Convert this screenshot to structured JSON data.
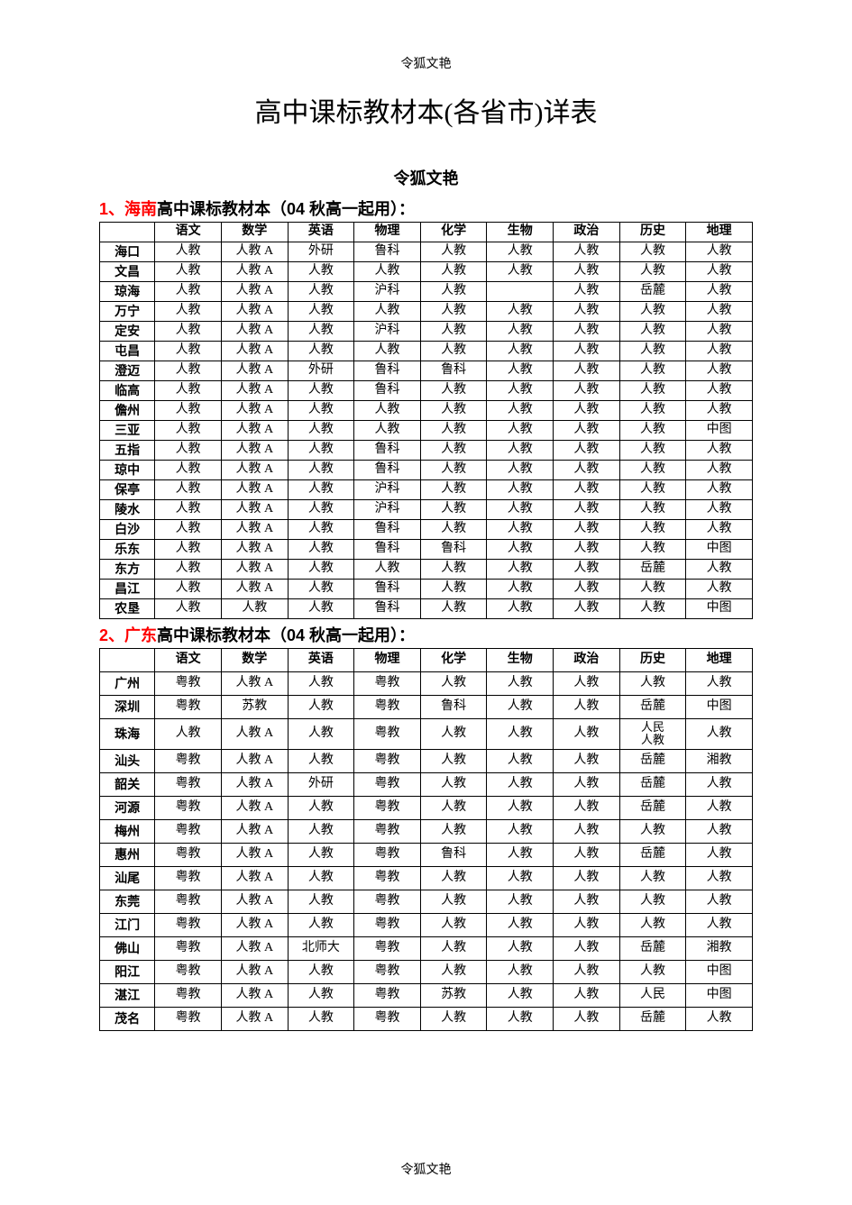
{
  "header": "令狐文艳",
  "main_title": "高中课标教材本(各省市)详表",
  "subtitle": "令狐文艳",
  "footer": "令狐文艳",
  "colors": {
    "text": "#000000",
    "accent": "#ff0000",
    "background": "#ffffff",
    "border": "#000000"
  },
  "section1": {
    "num": "1、",
    "province": "海南",
    "rest": "高中课标教材本（04 秋高一起用）：",
    "columns": [
      "",
      "语文",
      "数学",
      "英语",
      "物理",
      "化学",
      "生物",
      "政治",
      "历史",
      "地理"
    ],
    "rows": [
      [
        "海口",
        "人教",
        "人教 A",
        "外研",
        "鲁科",
        "人教",
        "人教",
        "人教",
        "人教",
        "人教"
      ],
      [
        "文昌",
        "人教",
        "人教 A",
        "人教",
        "人教",
        "人教",
        "人教",
        "人教",
        "人教",
        "人教"
      ],
      [
        "琼海",
        "人教",
        "人教 A",
        "人教",
        "沪科",
        "人教",
        "",
        "人教",
        "岳麓",
        "人教"
      ],
      [
        "万宁",
        "人教",
        "人教 A",
        "人教",
        "人教",
        "人教",
        "人教",
        "人教",
        "人教",
        "人教"
      ],
      [
        "定安",
        "人教",
        "人教 A",
        "人教",
        "沪科",
        "人教",
        "人教",
        "人教",
        "人教",
        "人教"
      ],
      [
        "屯昌",
        "人教",
        "人教 A",
        "人教",
        "人教",
        "人教",
        "人教",
        "人教",
        "人教",
        "人教"
      ],
      [
        "澄迈",
        "人教",
        "人教 A",
        "外研",
        "鲁科",
        "鲁科",
        "人教",
        "人教",
        "人教",
        "人教"
      ],
      [
        "临高",
        "人教",
        "人教 A",
        "人教",
        "鲁科",
        "人教",
        "人教",
        "人教",
        "人教",
        "人教"
      ],
      [
        "儋州",
        "人教",
        "人教 A",
        "人教",
        "人教",
        "人教",
        "人教",
        "人教",
        "人教",
        "人教"
      ],
      [
        "三亚",
        "人教",
        "人教 A",
        "人教",
        "人教",
        "人教",
        "人教",
        "人教",
        "人教",
        "中图"
      ],
      [
        "五指",
        "人教",
        "人教 A",
        "人教",
        "鲁科",
        "人教",
        "人教",
        "人教",
        "人教",
        "人教"
      ],
      [
        "琼中",
        "人教",
        "人教 A",
        "人教",
        "鲁科",
        "人教",
        "人教",
        "人教",
        "人教",
        "人教"
      ],
      [
        "保亭",
        "人教",
        "人教 A",
        "人教",
        "沪科",
        "人教",
        "人教",
        "人教",
        "人教",
        "人教"
      ],
      [
        "陵水",
        "人教",
        "人教 A",
        "人教",
        "沪科",
        "人教",
        "人教",
        "人教",
        "人教",
        "人教"
      ],
      [
        "白沙",
        "人教",
        "人教 A",
        "人教",
        "鲁科",
        "人教",
        "人教",
        "人教",
        "人教",
        "人教"
      ],
      [
        "乐东",
        "人教",
        "人教 A",
        "人教",
        "鲁科",
        "鲁科",
        "人教",
        "人教",
        "人教",
        "中图"
      ],
      [
        "东方",
        "人教",
        "人教 A",
        "人教",
        "人教",
        "人教",
        "人教",
        "人教",
        "岳麓",
        "人教"
      ],
      [
        "昌江",
        "人教",
        "人教 A",
        "人教",
        "鲁科",
        "人教",
        "人教",
        "人教",
        "人教",
        "人教"
      ],
      [
        "农垦",
        "人教",
        "人教",
        "人教",
        "鲁科",
        "人教",
        "人教",
        "人教",
        "人教",
        "中图"
      ]
    ]
  },
  "section2": {
    "num": "2、",
    "province": "广东",
    "rest": "高中课标教材本（04 秋高一起用）：",
    "columns": [
      "",
      "语文",
      "数学",
      "英语",
      "物理",
      "化学",
      "生物",
      "政治",
      "历史",
      "地理"
    ],
    "rows": [
      [
        "广州",
        "粤教",
        "人教 A",
        "人教",
        "粤教",
        "人教",
        "人教",
        "人教",
        "人教",
        "人教"
      ],
      [
        "深圳",
        "粤教",
        "苏教",
        "人教",
        "粤教",
        "鲁科",
        "人教",
        "人教",
        "岳麓",
        "中图"
      ],
      [
        "珠海",
        "人教",
        "人教 A",
        "人教",
        "粤教",
        "人教",
        "人教",
        "人教",
        "人民\n人教",
        "人教"
      ],
      [
        "汕头",
        "粤教",
        "人教 A",
        "人教",
        "粤教",
        "人教",
        "人教",
        "人教",
        "岳麓",
        "湘教"
      ],
      [
        "韶关",
        "粤教",
        "人教 A",
        "外研",
        "粤教",
        "人教",
        "人教",
        "人教",
        "岳麓",
        "人教"
      ],
      [
        "河源",
        "粤教",
        "人教 A",
        "人教",
        "粤教",
        "人教",
        "人教",
        "人教",
        "岳麓",
        "人教"
      ],
      [
        "梅州",
        "粤教",
        "人教 A",
        "人教",
        "粤教",
        "人教",
        "人教",
        "人教",
        "人教",
        "人教"
      ],
      [
        "惠州",
        "粤教",
        "人教 A",
        "人教",
        "粤教",
        "鲁科",
        "人教",
        "人教",
        "岳麓",
        "人教"
      ],
      [
        "汕尾",
        "粤教",
        "人教 A",
        "人教",
        "粤教",
        "人教",
        "人教",
        "人教",
        "人教",
        "人教"
      ],
      [
        "东莞",
        "粤教",
        "人教 A",
        "人教",
        "粤教",
        "人教",
        "人教",
        "人教",
        "人教",
        "人教"
      ],
      [
        "江门",
        "粤教",
        "人教 A",
        "人教",
        "粤教",
        "人教",
        "人教",
        "人教",
        "人教",
        "人教"
      ],
      [
        "佛山",
        "粤教",
        "人教 A",
        "北师大",
        "粤教",
        "人教",
        "人教",
        "人教",
        "岳麓",
        "湘教"
      ],
      [
        "阳江",
        "粤教",
        "人教 A",
        "人教",
        "粤教",
        "人教",
        "人教",
        "人教",
        "人教",
        "中图"
      ],
      [
        "湛江",
        "粤教",
        "人教 A",
        "人教",
        "粤教",
        "苏教",
        "人教",
        "人教",
        "人民",
        "中图"
      ],
      [
        "茂名",
        "粤教",
        "人教 A",
        "人教",
        "粤教",
        "人教",
        "人教",
        "人教",
        "岳麓",
        "人教"
      ]
    ]
  }
}
